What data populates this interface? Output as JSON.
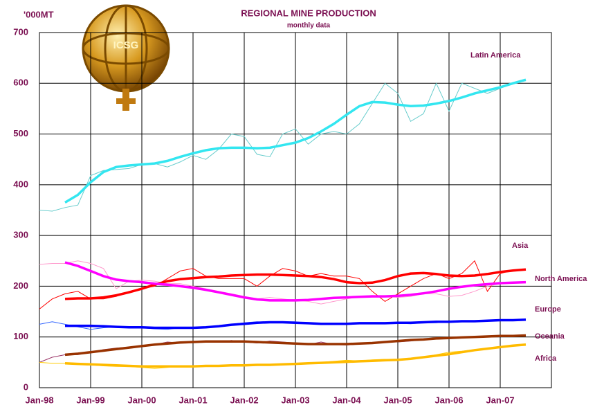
{
  "chart_data": {
    "type": "line",
    "title": "REGIONAL MINE PRODUCTION",
    "subtitle": "monthly data",
    "y_label": "'000MT",
    "logo_text": "ICSG",
    "categories": [
      "Jan-98",
      null,
      null,
      null,
      "Jan-99",
      null,
      null,
      null,
      "Jan-00",
      null,
      null,
      null,
      "Jan-01",
      null,
      null,
      null,
      "Jan-02",
      null,
      null,
      null,
      "Jan-03",
      null,
      null,
      null,
      "Jan-04",
      null,
      null,
      null,
      "Jan-05",
      null,
      null,
      null,
      "Jan-06",
      null,
      null,
      null,
      "Jan-07",
      null,
      null
    ],
    "ylim": [
      0,
      700
    ],
    "yticks": [
      0,
      100,
      200,
      300,
      400,
      500,
      600,
      700
    ],
    "grid": true,
    "series": [
      {
        "name": "Latin America",
        "color": "#66cccc",
        "trend_color": "#33e6f0",
        "values": [
          350,
          348,
          355,
          360,
          418,
          428,
          430,
          432,
          440,
          442,
          435,
          445,
          458,
          450,
          470,
          500,
          495,
          460,
          455,
          500,
          510,
          480,
          500,
          505,
          500,
          520,
          560,
          600,
          580,
          525,
          540,
          600,
          545,
          600,
          590,
          580,
          590,
          600,
          605
        ],
        "trend": [
          null,
          null,
          365,
          380,
          405,
          425,
          435,
          438,
          440,
          442,
          447,
          455,
          462,
          468,
          472,
          473,
          473,
          472,
          473,
          478,
          483,
          492,
          505,
          520,
          538,
          555,
          563,
          562,
          558,
          555,
          556,
          560,
          565,
          572,
          580,
          586,
          592,
          600,
          607
        ]
      },
      {
        "name": "Asia",
        "color": "#ff0000",
        "trend_color": "#ff0000",
        "values": [
          155,
          175,
          185,
          190,
          175,
          175,
          180,
          190,
          195,
          200,
          215,
          230,
          235,
          220,
          215,
          215,
          215,
          200,
          220,
          235,
          230,
          220,
          225,
          220,
          220,
          215,
          190,
          170,
          185,
          200,
          215,
          225,
          215,
          225,
          250,
          190,
          225,
          232,
          null
        ],
        "trend": [
          null,
          null,
          175,
          176,
          176,
          178,
          182,
          188,
          195,
          203,
          210,
          214,
          216,
          218,
          219,
          221,
          222,
          223,
          223,
          222,
          221,
          220,
          218,
          214,
          208,
          206,
          207,
          212,
          220,
          225,
          226,
          224,
          221,
          220,
          221,
          224,
          228,
          231,
          233
        ]
      },
      {
        "name": "North America",
        "color": "#ff99cc",
        "trend_color": "#ff00ff",
        "values": [
          243,
          245,
          245,
          250,
          245,
          235,
          195,
          210,
          212,
          210,
          205,
          205,
          200,
          195,
          190,
          185,
          180,
          175,
          178,
          175,
          172,
          170,
          165,
          170,
          175,
          180,
          182,
          180,
          178,
          180,
          185,
          185,
          180,
          182,
          190,
          200,
          205,
          207,
          208
        ],
        "trend": [
          null,
          null,
          247,
          240,
          230,
          220,
          213,
          210,
          208,
          205,
          203,
          200,
          197,
          193,
          188,
          183,
          178,
          174,
          172,
          172,
          172,
          173,
          175,
          177,
          178,
          179,
          180,
          180,
          181,
          183,
          186,
          190,
          195,
          199,
          202,
          204,
          206,
          207,
          208
        ]
      },
      {
        "name": "Europe",
        "color": "#3366ff",
        "trend_color": "#0000ff",
        "values": [
          125,
          130,
          125,
          120,
          115,
          118,
          120,
          120,
          118,
          116,
          115,
          118,
          117,
          118,
          120,
          125,
          128,
          130,
          128,
          130,
          130,
          127,
          126,
          125,
          126,
          126,
          127,
          128,
          127,
          126,
          128,
          128,
          130,
          130,
          131,
          132,
          132,
          133,
          134
        ],
        "trend": [
          null,
          null,
          122,
          122,
          122,
          121,
          120,
          119,
          119,
          118,
          118,
          118,
          118,
          119,
          121,
          124,
          126,
          128,
          129,
          129,
          128,
          127,
          126,
          126,
          126,
          127,
          127,
          127,
          128,
          128,
          129,
          130,
          130,
          131,
          131,
          132,
          133,
          133,
          134
        ]
      },
      {
        "name": "Oceania",
        "color": "#993366",
        "trend_color": "#993300",
        "values": [
          50,
          60,
          65,
          65,
          70,
          75,
          78,
          80,
          82,
          85,
          90,
          88,
          90,
          92,
          90,
          93,
          90,
          88,
          92,
          90,
          88,
          85,
          90,
          85,
          84,
          86,
          88,
          90,
          90,
          92,
          95,
          96,
          98,
          100,
          100,
          100,
          102,
          102,
          103
        ],
        "trend": [
          null,
          null,
          65,
          67,
          70,
          73,
          76,
          79,
          82,
          85,
          87,
          89,
          90,
          91,
          91,
          91,
          91,
          90,
          89,
          88,
          87,
          86,
          86,
          86,
          86,
          87,
          88,
          90,
          92,
          94,
          95,
          97,
          98,
          99,
          100,
          101,
          102,
          102,
          103
        ]
      },
      {
        "name": "Africa",
        "color": "#ffcc00",
        "trend_color": "#ffbb00",
        "values": [
          50,
          48,
          48,
          47,
          45,
          43,
          42,
          42,
          40,
          38,
          40,
          42,
          43,
          42,
          43,
          44,
          45,
          44,
          45,
          46,
          47,
          48,
          50,
          52,
          54,
          53,
          55,
          56,
          55,
          57,
          60,
          65,
          70,
          72,
          75,
          78,
          80,
          83,
          85
        ],
        "trend": [
          null,
          null,
          48,
          47,
          46,
          45,
          44,
          43,
          42,
          42,
          42,
          42,
          42,
          43,
          43,
          44,
          44,
          45,
          45,
          46,
          47,
          48,
          49,
          50,
          51,
          52,
          53,
          54,
          55,
          57,
          60,
          63,
          66,
          70,
          74,
          77,
          80,
          83,
          85
        ]
      }
    ]
  }
}
